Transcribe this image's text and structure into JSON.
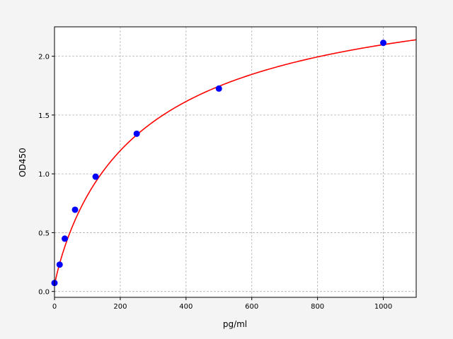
{
  "chart_data": {
    "type": "scatter",
    "title": "",
    "xlabel": "pg/ml",
    "ylabel": "OD450",
    "xlim": [
      0,
      1100
    ],
    "ylim": [
      -0.05,
      2.25
    ],
    "xticks": [
      "0",
      "200",
      "400",
      "600",
      "800",
      "1000"
    ],
    "yticks": [
      "0.0",
      "0.5",
      "1.0",
      "1.5",
      "2.0"
    ],
    "grid": true,
    "points": {
      "x": [
        0,
        15.6,
        31.25,
        62.5,
        125,
        250,
        500,
        1000
      ],
      "y": [
        0.072,
        0.228,
        0.449,
        0.695,
        0.976,
        1.341,
        1.725,
        2.114
      ],
      "color": "#0000ff"
    },
    "fit_curve": {
      "type": "line",
      "color": "#ff0000"
    }
  }
}
